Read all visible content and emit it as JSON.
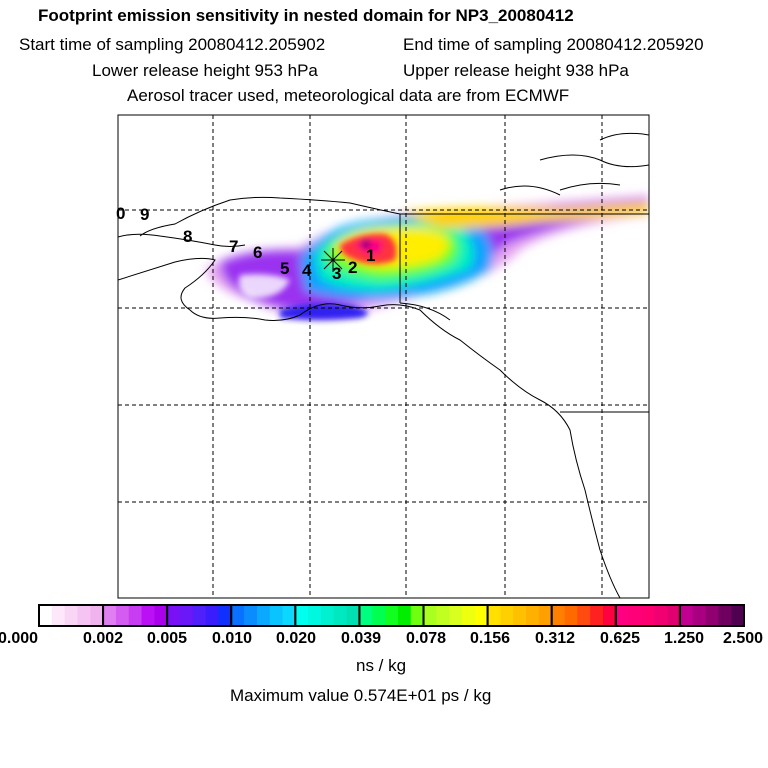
{
  "title": {
    "line1": "Footprint emission sensitivity in nested domain for NP3_20080412",
    "start": "Start time of sampling 20080412.205902",
    "end": "End time of sampling 20080412.205920",
    "lower": "Lower release height  953 hPa",
    "upper": "Upper release height  938 hPa",
    "line4": "Aerosol tracer used, meteorological data are from ECMWF"
  },
  "trajectory_labels": [
    "0",
    "9",
    "8",
    "7",
    "6",
    "5",
    "4",
    "3",
    "2",
    "1"
  ],
  "colorbar": {
    "labels": [
      "0.000",
      "0.002",
      "0.005",
      "0.010",
      "0.020",
      "0.039",
      "0.078",
      "0.156",
      "0.312",
      "0.625",
      "1.250",
      "2.500"
    ],
    "unit": "ns / kg",
    "colors": [
      [
        "#ffffff",
        "#fde8fb",
        "#f9d6f6",
        "#f5c4f2",
        "#f1b3ee"
      ],
      [
        "#e07ff0",
        "#d45cf0",
        "#c83cf2",
        "#bb10f5",
        "#aa00ee"
      ],
      [
        "#7a10f5",
        "#6a18f8",
        "#5020fa",
        "#3a1cfc",
        "#1030ff"
      ],
      [
        "#0a70ff",
        "#0a8cff",
        "#0aa8ff",
        "#0ac4ff",
        "#0ad8ff"
      ],
      [
        "#00ffee",
        "#00f8e0",
        "#00f0d0",
        "#00e8c0",
        "#00e0b0"
      ],
      [
        "#00ff80",
        "#00ff50",
        "#10ff20",
        "#00ee00",
        "#70ff10"
      ],
      [
        "#a8ff20",
        "#c0ff20",
        "#d8ff20",
        "#eeff10",
        "#ffff00"
      ],
      [
        "#ffe000",
        "#ffd000",
        "#ffc000",
        "#ffb000",
        "#ffa000"
      ],
      [
        "#ff8000",
        "#ff6a00",
        "#ff4a10",
        "#ff2020",
        "#ff0040"
      ],
      [
        "#ff0080",
        "#ff0078",
        "#ff0070",
        "#f00070",
        "#e00070"
      ],
      [
        "#c00090",
        "#a80080",
        "#900070",
        "#700060",
        "#500050"
      ]
    ]
  },
  "max_value": "Maximum value  0.574E+01 ps / kg"
}
